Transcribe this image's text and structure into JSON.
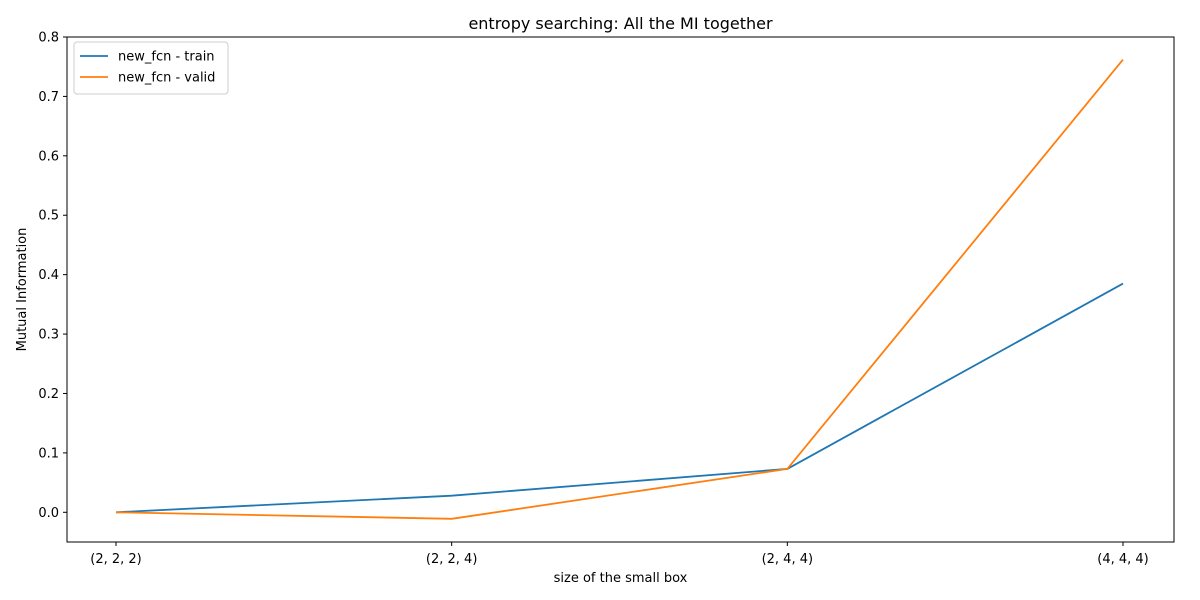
{
  "chart_data": {
    "type": "line",
    "title": "entropy searching: All the MI together",
    "xlabel": "size of the small box",
    "ylabel": "Mutual Information",
    "categories": [
      "(2, 2, 2)",
      "(2, 2, 4)",
      "(2, 4, 4)",
      "(4, 4, 4)"
    ],
    "ylim": [
      -0.05,
      0.8
    ],
    "yticks": [
      "0.0",
      "0.1",
      "0.2",
      "0.3",
      "0.4",
      "0.5",
      "0.6",
      "0.7",
      "0.8"
    ],
    "ytick_values": [
      0.0,
      0.1,
      0.2,
      0.3,
      0.4,
      0.5,
      0.6,
      0.7,
      0.8
    ],
    "grid": false,
    "legend_position": "top-left",
    "series": [
      {
        "name": "new_fcn - train",
        "color": "#1f77b4",
        "values": [
          0.0,
          0.028,
          0.073,
          0.385
        ]
      },
      {
        "name": "new_fcn - valid",
        "color": "#ff7f0e",
        "values": [
          0.0,
          -0.011,
          0.073,
          0.762
        ]
      }
    ]
  }
}
